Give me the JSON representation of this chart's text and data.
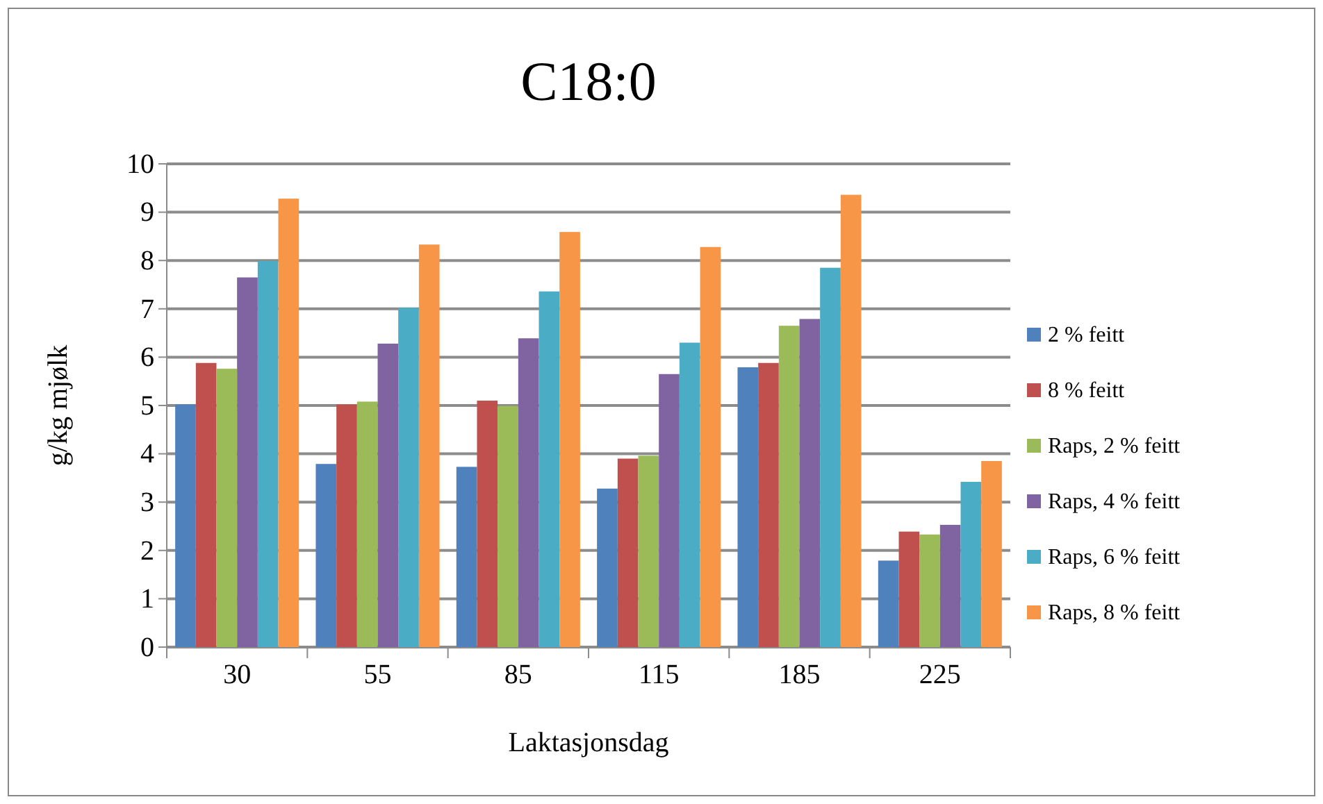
{
  "chart_data": {
    "type": "bar",
    "title": "C18:0",
    "xlabel": "Laktasjonsdag",
    "ylabel": "g/kg mjølk",
    "categories": [
      "30",
      "55",
      "85",
      "115",
      "185",
      "225"
    ],
    "series": [
      {
        "name": "2 % feitt",
        "color": "#4f81bd",
        "values": [
          5.02,
          3.79,
          3.73,
          3.28,
          5.79,
          1.79
        ]
      },
      {
        "name": "8 % feitt",
        "color": "#c0504d",
        "values": [
          5.88,
          5.02,
          5.1,
          3.9,
          5.88,
          2.39
        ]
      },
      {
        "name": "Raps, 2 % feitt",
        "color": "#9bbb59",
        "values": [
          5.76,
          5.08,
          4.99,
          3.96,
          6.65,
          2.33
        ]
      },
      {
        "name": "Raps, 4 % feitt",
        "color": "#8064a2",
        "values": [
          7.65,
          6.28,
          6.39,
          5.65,
          6.79,
          2.53
        ]
      },
      {
        "name": "Raps, 6 % feitt",
        "color": "#4bacc6",
        "values": [
          7.99,
          7.02,
          7.36,
          6.3,
          7.85,
          3.42
        ]
      },
      {
        "name": "Raps, 8 % feitt",
        "color": "#f79646",
        "values": [
          9.28,
          8.33,
          8.59,
          8.28,
          9.36,
          3.85
        ]
      }
    ],
    "ylim": [
      0,
      10
    ],
    "yticks": [
      0,
      1,
      2,
      3,
      4,
      5,
      6,
      7,
      8,
      9,
      10
    ],
    "grid": "y",
    "legend": "right"
  }
}
